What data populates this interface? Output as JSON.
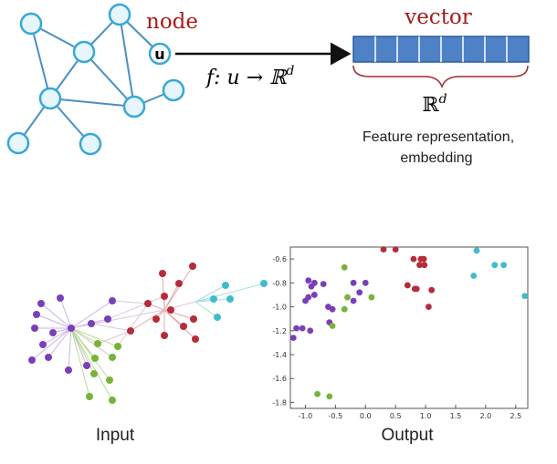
{
  "top": {
    "node_title": "node",
    "node_u_label": "u",
    "mapping_label": "f: u → ℝ",
    "mapping_superscript": "d",
    "vector_title": "vector",
    "vector_cells": 8,
    "space_label": "ℝ",
    "space_superscript": "d",
    "caption_line1": "Feature representation,",
    "caption_line2": "embedding"
  },
  "bottom": {
    "input_label": "Input",
    "output_label": "Output"
  },
  "colors": {
    "node_fill": "#e7f6fd",
    "node_stroke": "#37a8d8",
    "edge": "#4a8fc4",
    "vector_fill": "#4f81c7",
    "vector_border": "#2a5a9a",
    "brace": "#9d2a2a",
    "title_red": "#a51c1c",
    "purple": "#7a3fb8",
    "red": "#b52c3a",
    "green": "#77b33a",
    "cyan": "#3fbccc"
  },
  "chart_data": {
    "type": "scatter",
    "xlim": [
      -1.25,
      2.7
    ],
    "ylim": [
      -1.85,
      -0.5
    ],
    "x_ticks": [
      "-1.0",
      "-0.5",
      "0.0",
      "0.5",
      "1.0",
      "1.5",
      "2.0",
      "2.5"
    ],
    "x_tick_values": [
      -1.0,
      -0.5,
      0.0,
      0.5,
      1.0,
      1.5,
      2.0,
      2.5
    ],
    "y_ticks": [
      "-0.6",
      "-0.8",
      "-1.0",
      "-1.2",
      "-1.4",
      "-1.6",
      "-1.8"
    ],
    "y_tick_values": [
      -0.6,
      -0.8,
      -1.0,
      -1.2,
      -1.4,
      -1.6,
      -1.8
    ],
    "series": [
      {
        "color": "#7a3fb8",
        "points": [
          [
            -0.95,
            -0.78
          ],
          [
            -0.85,
            -0.8
          ],
          [
            -0.7,
            -0.81
          ],
          [
            -0.9,
            -0.83
          ],
          [
            -0.85,
            -0.9
          ],
          [
            -0.95,
            -0.92
          ],
          [
            -1.0,
            -0.95
          ],
          [
            -0.62,
            -1.0
          ],
          [
            -0.55,
            -1.02
          ],
          [
            -0.6,
            -1.13
          ],
          [
            -1.15,
            -1.18
          ],
          [
            -1.05,
            -1.18
          ],
          [
            -0.92,
            -1.2
          ],
          [
            -1.2,
            -1.26
          ],
          [
            -0.2,
            -0.8
          ],
          [
            0.0,
            -0.8
          ],
          [
            -0.1,
            -0.88
          ],
          [
            -0.2,
            -0.95
          ]
        ]
      },
      {
        "color": "#b52c3a",
        "points": [
          [
            0.3,
            -0.52
          ],
          [
            0.5,
            -0.52
          ],
          [
            0.8,
            -0.6
          ],
          [
            0.92,
            -0.6
          ],
          [
            0.97,
            -0.6
          ],
          [
            0.9,
            -0.65
          ],
          [
            0.98,
            -0.65
          ],
          [
            0.7,
            -0.82
          ],
          [
            0.85,
            -0.85
          ],
          [
            0.82,
            -0.85
          ],
          [
            1.1,
            -0.86
          ],
          [
            1.05,
            -1.0
          ]
        ]
      },
      {
        "color": "#77b33a",
        "points": [
          [
            -0.35,
            -0.67
          ],
          [
            -0.3,
            -0.92
          ],
          [
            -0.35,
            -1.02
          ],
          [
            0.1,
            -0.92
          ],
          [
            -0.55,
            -1.16
          ],
          [
            -0.8,
            -1.73
          ],
          [
            -0.6,
            -1.75
          ]
        ]
      },
      {
        "color": "#3fbccc",
        "points": [
          [
            1.85,
            -0.53
          ],
          [
            1.8,
            -0.74
          ],
          [
            2.15,
            -0.65
          ],
          [
            2.3,
            -0.65
          ],
          [
            2.65,
            -0.91
          ]
        ]
      }
    ]
  }
}
